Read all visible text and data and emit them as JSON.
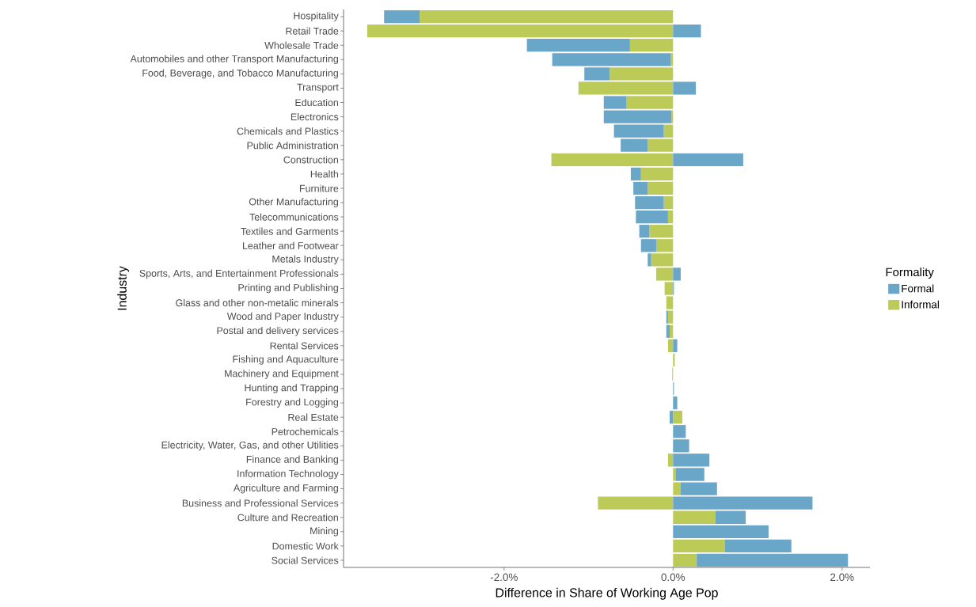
{
  "chart_data": {
    "type": "bar",
    "orientation": "horizontal",
    "stacked": true,
    "xlabel": "Difference in Share of Working Age Pop",
    "ylabel": "Industry",
    "legend_title": "Formality",
    "legend": "right",
    "categories": [
      "Hospitality",
      "Retail Trade",
      "Wholesale Trade",
      "Automobiles and other Transport Manufacturing",
      "Food, Beverage, and Tobacco Manufacturing",
      "Transport",
      "Education",
      "Electronics",
      "Chemicals and Plastics",
      "Public Administration",
      "Construction",
      "Health",
      "Furniture",
      "Other Manufacturing",
      "Telecommunications",
      "Textiles and Garments",
      "Leather and Footwear",
      "Metals Industry",
      "Sports, Arts, and Entertainment Professionals",
      "Printing and Publishing",
      "Glass and other non-metalic minerals",
      "Wood and Paper Industry",
      "Postal and delivery services",
      "Rental Services",
      "Fishing and Aquaculture",
      "Machinery and Equipment",
      "Hunting and Trapping",
      "Forestry and Logging",
      "Real Estate",
      "Petrochemicals",
      "Electricity, Water, Gas, and other Utilities",
      "Finance and Banking",
      "Information Technology",
      "Agriculture and Farming",
      "Business and Professional Services",
      "Culture and Recreation",
      "Mining",
      "Domestic Work",
      "Social Services"
    ],
    "series": [
      {
        "name": "Informal",
        "color": "#bccb57",
        "values": [
          -3.0,
          -3.62,
          -0.51,
          -0.03,
          -0.75,
          -1.12,
          -0.55,
          -0.02,
          -0.11,
          -0.3,
          -1.44,
          -0.38,
          -0.3,
          -0.11,
          -0.06,
          -0.28,
          -0.2,
          -0.26,
          -0.2,
          -0.1,
          -0.08,
          -0.06,
          -0.04,
          -0.06,
          0.02,
          -0.01,
          0,
          0,
          0.11,
          0,
          0,
          -0.06,
          0.03,
          0.09,
          -0.89,
          0.5,
          0,
          0.61,
          0.28
        ]
      },
      {
        "name": "Formal",
        "color": "#6aa6c8",
        "values": [
          -0.42,
          0.33,
          -1.22,
          -1.4,
          -0.3,
          0.27,
          -0.27,
          -0.8,
          -0.59,
          -0.32,
          0.83,
          -0.12,
          -0.17,
          -0.34,
          -0.38,
          -0.12,
          -0.18,
          -0.04,
          0.09,
          0.01,
          0,
          -0.02,
          -0.04,
          0.05,
          0,
          0,
          0.01,
          0.05,
          -0.04,
          0.15,
          0.19,
          0.43,
          0.34,
          0.43,
          1.65,
          0.36,
          1.13,
          0.79,
          1.79
        ]
      }
    ],
    "xlim": [
      -3.9,
      2.33
    ],
    "xticks": [
      {
        "value": -2,
        "label": "-2.0%"
      },
      {
        "value": 0,
        "label": "0.0%"
      },
      {
        "value": 2,
        "label": "2.0%"
      }
    ]
  }
}
